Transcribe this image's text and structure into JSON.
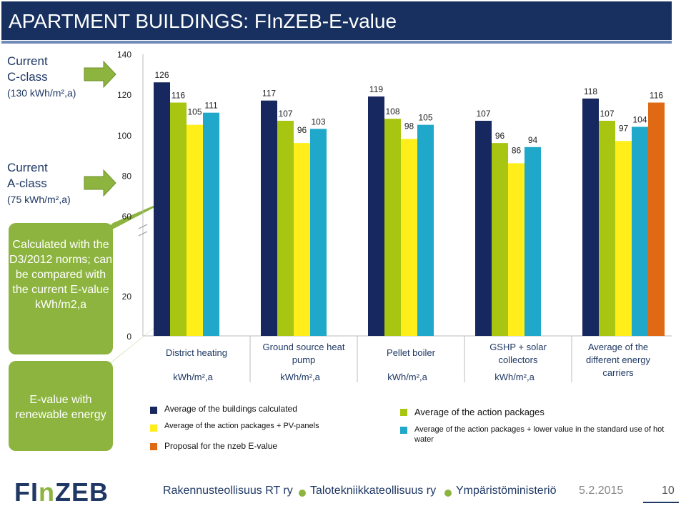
{
  "header": {
    "title": "APARTMENT BUILDINGS: FInZEB-E-value"
  },
  "left_panel": {
    "c_class_line1": "Current",
    "c_class_line2": "C-class",
    "c_class_line3": "(130 kWh/m²,a)",
    "a_class_line1": "Current",
    "a_class_line2": "A-class",
    "a_class_line3": "(75 kWh/m²,a)",
    "bubble_calc": "Calculated with the D3/2012 norms; can be compared with the current E-value kWh/m2,a",
    "bubble_evalue": "E-value with renewable energy"
  },
  "chart_data": {
    "type": "bar",
    "y_ticks": [
      0,
      20,
      60,
      80,
      100,
      120,
      140
    ],
    "ylim": [
      0,
      140
    ],
    "axis_break": true,
    "groups": [
      {
        "label": "District heating",
        "unit": "kWh/m²,a",
        "values": [
          126,
          116,
          105,
          111
        ]
      },
      {
        "label": "Ground source heat pump",
        "unit": "kWh/m²,a",
        "values": [
          117,
          107,
          96,
          103
        ]
      },
      {
        "label": "Pellet boiler",
        "unit": "kWh/m²,a",
        "values": [
          119,
          108,
          98,
          105
        ]
      },
      {
        "label": "GSHP + solar collectors",
        "unit": "kWh/m²,a",
        "values": [
          107,
          96,
          86,
          94
        ]
      },
      {
        "label": "Average of the different energy carriers",
        "unit": "",
        "values": [
          118,
          107,
          97,
          104,
          116
        ]
      }
    ],
    "series": [
      {
        "name": "Average of the buildings calculated",
        "color": "#17275f"
      },
      {
        "name": "Average of the action packages",
        "color": "#a8c512"
      },
      {
        "name": "Average of the action packages + PV-panels",
        "color": "#ffee1a"
      },
      {
        "name": "Average of the action packages + lower value in the standard use of hot water",
        "color": "#1fa8c9"
      },
      {
        "name": "Proposal for the nzeb E-value",
        "color": "#e06a14"
      }
    ]
  },
  "legend": {
    "s1": "Average of the buildings calculated",
    "s2": "Average of the action packages",
    "s3": "Average of the action packages + PV-panels",
    "s4": "Average of the action packages + lower value in the standard use of hot water",
    "s5": "Proposal for the nzeb E-value"
  },
  "footer": {
    "logo_a": "FI",
    "logo_b": "n",
    "logo_c": "ZEB",
    "org1": "Rakennusteollisuus RT ry",
    "org2": "Talotekniikkateollisuus ry",
    "org3": "Ympäristöministeriö",
    "date": "5.2.2015",
    "page": "10"
  }
}
